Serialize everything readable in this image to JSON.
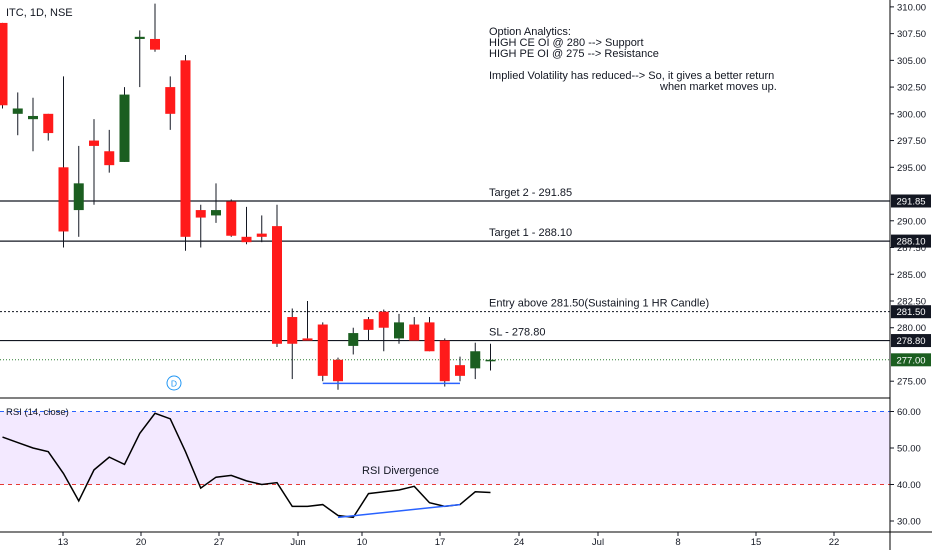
{
  "symbol_label": "ITC, 1D, NSE",
  "note_lines": [
    "Option Analytics:",
    "HIGH CE OI @ 280 --> Support",
    "HIGH PE OI @ 275 --> Resistance",
    "",
    "Implied Volatility has reduced--> So, it gives a better return",
    "when market moves up."
  ],
  "levels": [
    {
      "label": "Target 2 - 291.85",
      "value": 291.85,
      "tag": "291.85",
      "style": "solid"
    },
    {
      "label": "Target 1 - 288.10",
      "value": 288.1,
      "tag": "288.10",
      "style": "solid"
    },
    {
      "label": "Entry above 281.50(Sustaining 1 HR Candle)",
      "value": 281.5,
      "tag": "281.50",
      "style": "dotted"
    },
    {
      "label": "SL - 278.80",
      "value": 278.8,
      "tag": "278.80",
      "style": "solid"
    }
  ],
  "last_price": {
    "value": 277.0,
    "tag": "277.00",
    "color": "#1b5e20"
  },
  "rsi_label": "RSI (14, close)",
  "rsi_divergence_label": "RSI Divergence",
  "dividend_marker": "D",
  "colors": {
    "up": "#1b5e20",
    "down": "#ff1a1a",
    "line": "#000000",
    "divergence": "#2962ff",
    "rsi_band": "#f3e9ff",
    "rsi_upper": "#2962ff",
    "rsi_lower": "#e53935",
    "last_price_line": "#2e7d32"
  },
  "chart_data": [
    {
      "type": "candlestick",
      "x_ticks": [
        "13",
        "20",
        "27",
        "Jun",
        "10",
        "17",
        "24",
        "Jul",
        "8",
        "15",
        "22"
      ],
      "y_ticks": [
        "310.00",
        "307.50",
        "305.00",
        "302.50",
        "300.00",
        "297.50",
        "295.00",
        "290.00",
        "287.50",
        "285.00",
        "282.50",
        "280.00",
        "275.00"
      ],
      "ylim": [
        273.5,
        311.0
      ],
      "candles": [
        {
          "o": 308.5,
          "h": 308.5,
          "l": 300.5,
          "c": 300.8
        },
        {
          "o": 300.0,
          "h": 302.0,
          "l": 298.0,
          "c": 300.5
        },
        {
          "o": 299.5,
          "h": 301.5,
          "l": 296.5,
          "c": 299.8
        },
        {
          "o": 300.0,
          "h": 300.0,
          "l": 297.5,
          "c": 298.2
        },
        {
          "o": 295.0,
          "h": 303.5,
          "l": 287.5,
          "c": 289.0
        },
        {
          "o": 291.0,
          "h": 297.0,
          "l": 288.5,
          "c": 293.5
        },
        {
          "o": 297.5,
          "h": 299.5,
          "l": 291.5,
          "c": 297.0
        },
        {
          "o": 296.5,
          "h": 298.5,
          "l": 294.5,
          "c": 295.2
        },
        {
          "o": 295.5,
          "h": 302.5,
          "l": 295.5,
          "c": 301.8
        },
        {
          "o": 307.0,
          "h": 307.8,
          "l": 302.5,
          "c": 307.2
        },
        {
          "o": 307.0,
          "h": 310.3,
          "l": 305.8,
          "c": 306.0
        },
        {
          "o": 302.5,
          "h": 303.5,
          "l": 298.5,
          "c": 300.0
        },
        {
          "o": 305.0,
          "h": 305.5,
          "l": 287.2,
          "c": 288.5
        },
        {
          "o": 291.0,
          "h": 291.5,
          "l": 287.5,
          "c": 290.3
        },
        {
          "o": 290.5,
          "h": 293.5,
          "l": 289.8,
          "c": 291.0
        },
        {
          "o": 291.8,
          "h": 292.0,
          "l": 288.5,
          "c": 288.6
        },
        {
          "o": 288.5,
          "h": 291.3,
          "l": 287.8,
          "c": 288.0
        },
        {
          "o": 288.8,
          "h": 290.5,
          "l": 288.0,
          "c": 288.5
        },
        {
          "o": 289.5,
          "h": 291.5,
          "l": 278.2,
          "c": 278.5
        },
        {
          "o": 281.0,
          "h": 281.8,
          "l": 275.2,
          "c": 278.5
        },
        {
          "o": 279.0,
          "h": 282.5,
          "l": 279.0,
          "c": 278.8
        },
        {
          "o": 280.3,
          "h": 280.5,
          "l": 275.0,
          "c": 275.5
        },
        {
          "o": 277.0,
          "h": 277.2,
          "l": 274.2,
          "c": 275.0
        },
        {
          "o": 278.3,
          "h": 280.0,
          "l": 277.5,
          "c": 279.5
        },
        {
          "o": 280.8,
          "h": 281.0,
          "l": 278.8,
          "c": 279.8
        },
        {
          "o": 281.5,
          "h": 281.7,
          "l": 277.8,
          "c": 280.0
        },
        {
          "o": 279.0,
          "h": 281.3,
          "l": 278.5,
          "c": 280.5
        },
        {
          "o": 280.3,
          "h": 281.0,
          "l": 278.8,
          "c": 278.8
        },
        {
          "o": 280.5,
          "h": 281.0,
          "l": 277.8,
          "c": 277.8
        },
        {
          "o": 278.8,
          "h": 279.0,
          "l": 274.5,
          "c": 275.0
        },
        {
          "o": 276.5,
          "h": 277.3,
          "l": 275.0,
          "c": 275.5
        },
        {
          "o": 276.2,
          "h": 278.6,
          "l": 275.2,
          "c": 277.8
        },
        {
          "o": 277.0,
          "h": 278.5,
          "l": 276.0,
          "c": 277.0
        }
      ],
      "divergence_line": {
        "from_index": 21,
        "to_index": 30,
        "value": 274.8
      }
    },
    {
      "type": "line",
      "name": "RSI (14, close)",
      "y_ticks": [
        "60.00",
        "50.00",
        "40.00",
        "30.00"
      ],
      "ylim": [
        28,
        62
      ],
      "upper_band": 60,
      "lower_band": 40,
      "values": [
        53,
        51.5,
        50,
        49,
        43,
        35.5,
        44,
        47.5,
        45.5,
        54,
        59.5,
        58,
        49,
        39,
        42,
        42.5,
        41,
        40,
        40.5,
        34,
        34,
        34.5,
        31.5,
        31,
        37.5,
        38,
        38.5,
        39.5,
        35,
        34,
        34.5,
        38,
        37.8
      ],
      "divergence_line": {
        "from_index": 22,
        "to_index": 30,
        "from_value": 31,
        "to_value": 34.5
      }
    }
  ]
}
